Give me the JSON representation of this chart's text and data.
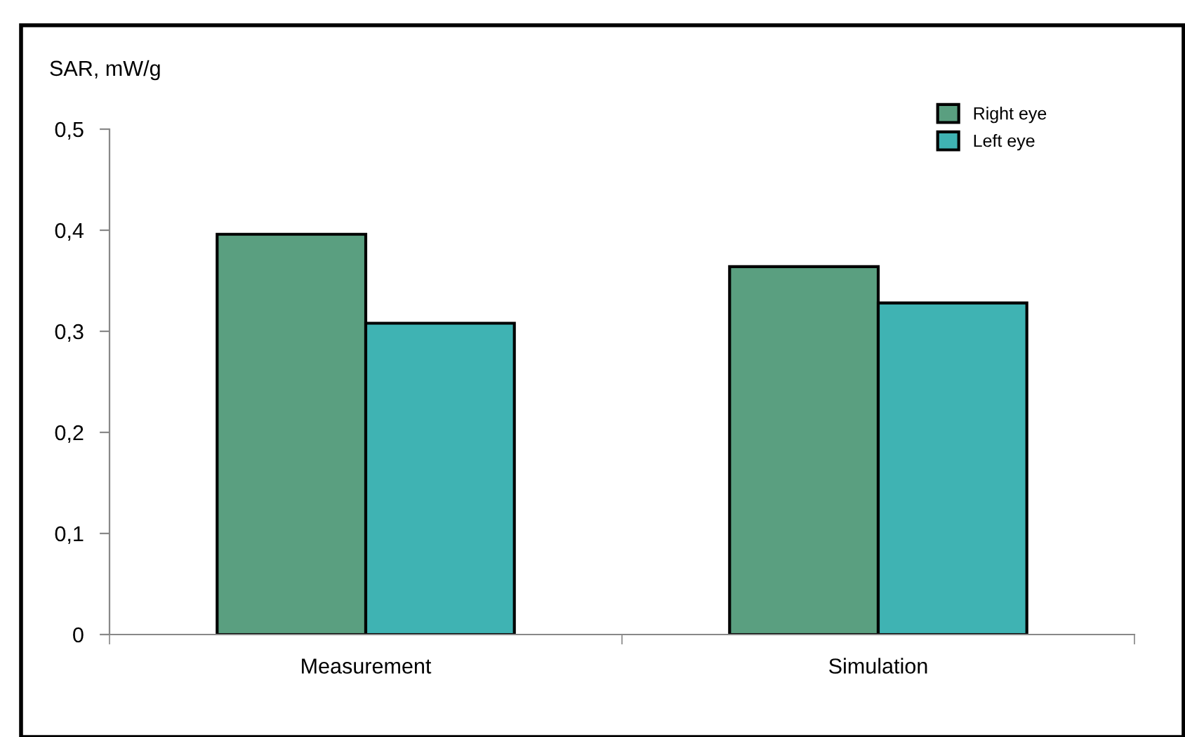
{
  "chart_data": {
    "type": "bar",
    "ylabel": "SAR, mW/g",
    "categories": [
      "Measurement",
      "Simulation"
    ],
    "series": [
      {
        "name": "Right eye",
        "color": "#5a9f80",
        "values": [
          0.396,
          0.364
        ]
      },
      {
        "name": "Left eye",
        "color": "#3fb3b3",
        "values": [
          0.308,
          0.328
        ]
      }
    ],
    "ylim": [
      0,
      0.5
    ],
    "yticks": [
      {
        "value": 0,
        "label": "0"
      },
      {
        "value": 0.1,
        "label": "0,1"
      },
      {
        "value": 0.2,
        "label": "0,2"
      },
      {
        "value": 0.3,
        "label": "0,3"
      },
      {
        "value": 0.4,
        "label": "0,4"
      },
      {
        "value": 0.5,
        "label": "0,5"
      }
    ],
    "legend": "top right",
    "grid": false
  }
}
